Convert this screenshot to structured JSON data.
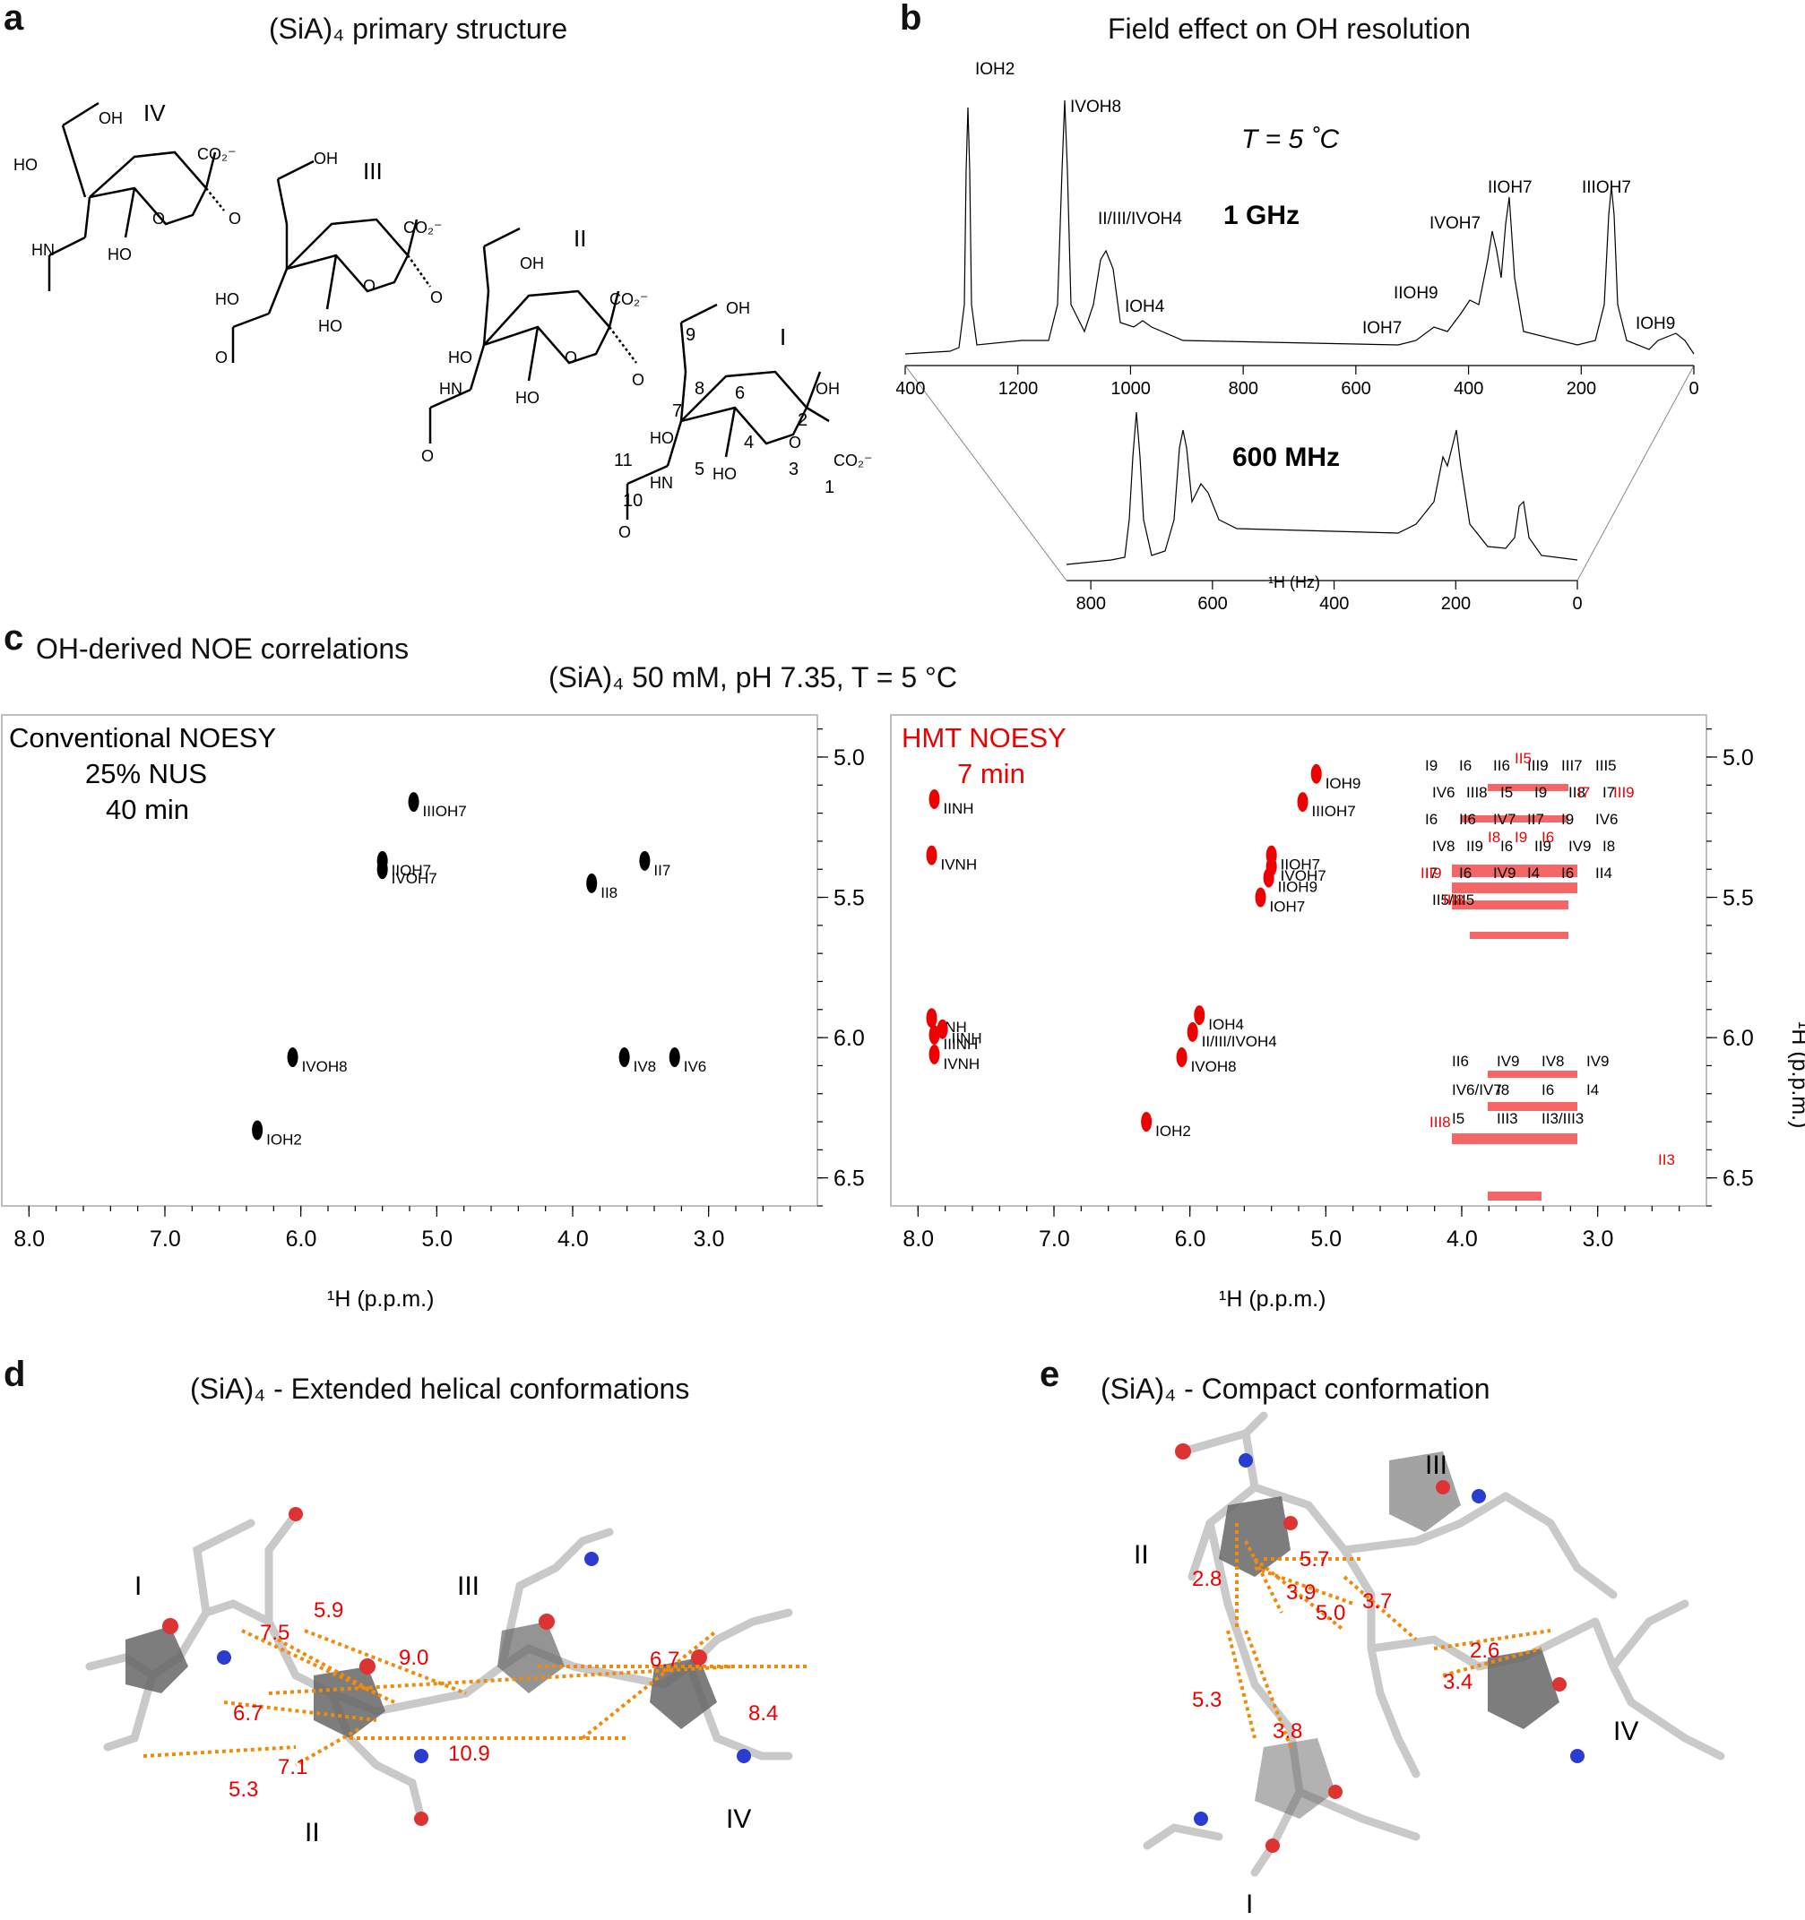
{
  "panels": {
    "a": {
      "label": "a",
      "title": "(SiA)₄ primary structure"
    },
    "b": {
      "label": "b",
      "title": "Field effect on OH resolution"
    },
    "c": {
      "label": "c",
      "title": "OH-derived NOE correlations",
      "subtitle": "(SiA)₄ 50 mM, pH 7.35, T = 5 °C"
    },
    "d": {
      "label": "d",
      "title": "(SiA)₄ - Extended helical conformations"
    },
    "e": {
      "label": "e",
      "title": "(SiA)₄ - Compact conformation"
    }
  },
  "structure": {
    "rings": [
      "I",
      "II",
      "III",
      "IV"
    ],
    "atom_numbers": [
      "1",
      "2",
      "3",
      "4",
      "5",
      "6",
      "7",
      "8",
      "9",
      "10",
      "11"
    ],
    "groups": [
      "OH",
      "HO",
      "HN",
      "NH",
      "O",
      "CO₂⁻"
    ]
  },
  "chart_data": [
    {
      "type": "line",
      "title": "1 GHz",
      "annotation": "T = 5 ˚C",
      "xlabel": "",
      "xlim": [
        1400,
        0
      ],
      "xticks": [
        "1400",
        "1200",
        "1000",
        "800",
        "600",
        "400",
        "200",
        "0"
      ],
      "peak_labels": [
        {
          "label": "IOH2",
          "x": 1305
        },
        {
          "label": "IVOH8",
          "x": 1065
        },
        {
          "label": "II/III/IVOH4",
          "x": 978
        },
        {
          "label": "IOH4",
          "x": 905
        },
        {
          "label": "IOH7",
          "x": 500
        },
        {
          "label": "IIOH9",
          "x": 435
        },
        {
          "label": "IVOH7",
          "x": 390
        },
        {
          "label": "IIOH7",
          "x": 360
        },
        {
          "label": "IIIOH7",
          "x": 150
        },
        {
          "label": "IOH9",
          "x": 60
        }
      ]
    },
    {
      "type": "line",
      "title": "600 MHz",
      "xlabel": "¹H (Hz)",
      "xlim": [
        840,
        0
      ],
      "xticks": [
        "800",
        "600",
        "400",
        "200",
        "0"
      ]
    },
    {
      "type": "scatter",
      "title": "Conventional NOESY",
      "annotations": [
        "25% NUS",
        "40 min"
      ],
      "xlabel": "¹H (p.p.m.)",
      "ylabel": "¹H (p.p.m.)",
      "xlim": [
        8.2,
        2.2
      ],
      "ylim": [
        4.85,
        6.6
      ],
      "xticks": [
        "8.0",
        "7.0",
        "6.0",
        "5.0",
        "4.0",
        "3.0"
      ],
      "yticks": [
        "5.0",
        "5.5",
        "6.0",
        "6.5"
      ],
      "peaks": [
        {
          "label": "IIIOH7",
          "x": 5.17,
          "y": 5.16
        },
        {
          "label": "IIOH7",
          "x": 5.4,
          "y": 5.37
        },
        {
          "label": "IVOH7",
          "x": 5.4,
          "y": 5.4
        },
        {
          "label": "II7",
          "x": 3.47,
          "y": 5.37
        },
        {
          "label": "II8",
          "x": 3.86,
          "y": 5.45
        },
        {
          "label": "IVOH8",
          "x": 6.06,
          "y": 6.07
        },
        {
          "label": "IV8",
          "x": 3.62,
          "y": 6.07
        },
        {
          "label": "IV6",
          "x": 3.25,
          "y": 6.07
        },
        {
          "label": "IOH2",
          "x": 6.32,
          "y": 6.33
        }
      ]
    },
    {
      "type": "scatter",
      "title": "HMT NOESY",
      "annotations": [
        "7 min"
      ],
      "xlabel": "¹H (p.p.m.)",
      "ylabel": "¹H (p.p.m.)",
      "xlim": [
        8.2,
        2.2
      ],
      "ylim": [
        4.85,
        6.6
      ],
      "xticks": [
        "8.0",
        "7.0",
        "6.0",
        "5.0",
        "4.0",
        "3.0"
      ],
      "yticks": [
        "5.0",
        "5.5",
        "6.0",
        "6.5"
      ],
      "peaks": [
        {
          "label": "IOH9",
          "x": 5.07,
          "y": 5.06
        },
        {
          "label": "IIIOH7",
          "x": 5.17,
          "y": 5.16
        },
        {
          "label": "IIOH7",
          "x": 5.4,
          "y": 5.35
        },
        {
          "label": "IVOH7",
          "x": 5.4,
          "y": 5.39
        },
        {
          "label": "IIOH9",
          "x": 5.42,
          "y": 5.43
        },
        {
          "label": "IOH7",
          "x": 5.48,
          "y": 5.5
        },
        {
          "label": "IOH4",
          "x": 5.93,
          "y": 5.92
        },
        {
          "label": "II/III/IVOH4",
          "x": 5.98,
          "y": 5.98
        },
        {
          "label": "IVOH8",
          "x": 6.06,
          "y": 6.07
        },
        {
          "label": "IOH2",
          "x": 6.32,
          "y": 6.3
        },
        {
          "label": "IINH",
          "x": 7.88,
          "y": 5.15
        },
        {
          "label": "IVNH",
          "x": 7.9,
          "y": 5.35
        },
        {
          "label": "INH",
          "x": 7.9,
          "y": 5.93
        },
        {
          "label": "IINH",
          "x": 7.82,
          "y": 5.97
        },
        {
          "label": "IIINH",
          "x": 7.88,
          "y": 5.99
        },
        {
          "label": "IVNH",
          "x": 7.88,
          "y": 6.06
        }
      ],
      "region_labels": {
        "black": [
          "I9",
          "I6",
          "II6",
          "III9",
          "III7",
          "III5",
          "IV6",
          "III8",
          "I5",
          "I9",
          "II8",
          "I7",
          "I6",
          "II6",
          "IV7",
          "II7",
          "I9",
          "IV6",
          "IV8",
          "II9",
          "I6",
          "II9",
          "IV9",
          "I8",
          "I7",
          "I6",
          "IV9",
          "I4",
          "I6",
          "II4",
          "II5/III5",
          "II6",
          "IV9",
          "IV8",
          "IV9",
          "IV6/IV7",
          "I8",
          "I6",
          "I4",
          "I5",
          "III3",
          "II3/III3"
        ],
        "red": [
          "II5",
          "I7",
          "III9",
          "I8",
          "I9",
          "I6",
          "III9",
          "III8",
          "III8",
          "II3"
        ]
      }
    }
  ],
  "panel_d": {
    "distances": [
      "7.5",
      "5.9",
      "9.0",
      "6.7",
      "6.7",
      "8.4",
      "10.9",
      "7.1",
      "5.3"
    ],
    "ring_labels": [
      "I",
      "II",
      "III",
      "IV"
    ]
  },
  "panel_e": {
    "distances": [
      "2.8",
      "5.7",
      "3.9",
      "5.0",
      "3.7",
      "2.6",
      "3.4",
      "5.3",
      "3.8"
    ],
    "ring_labels": [
      "I",
      "II",
      "III",
      "IV"
    ]
  }
}
